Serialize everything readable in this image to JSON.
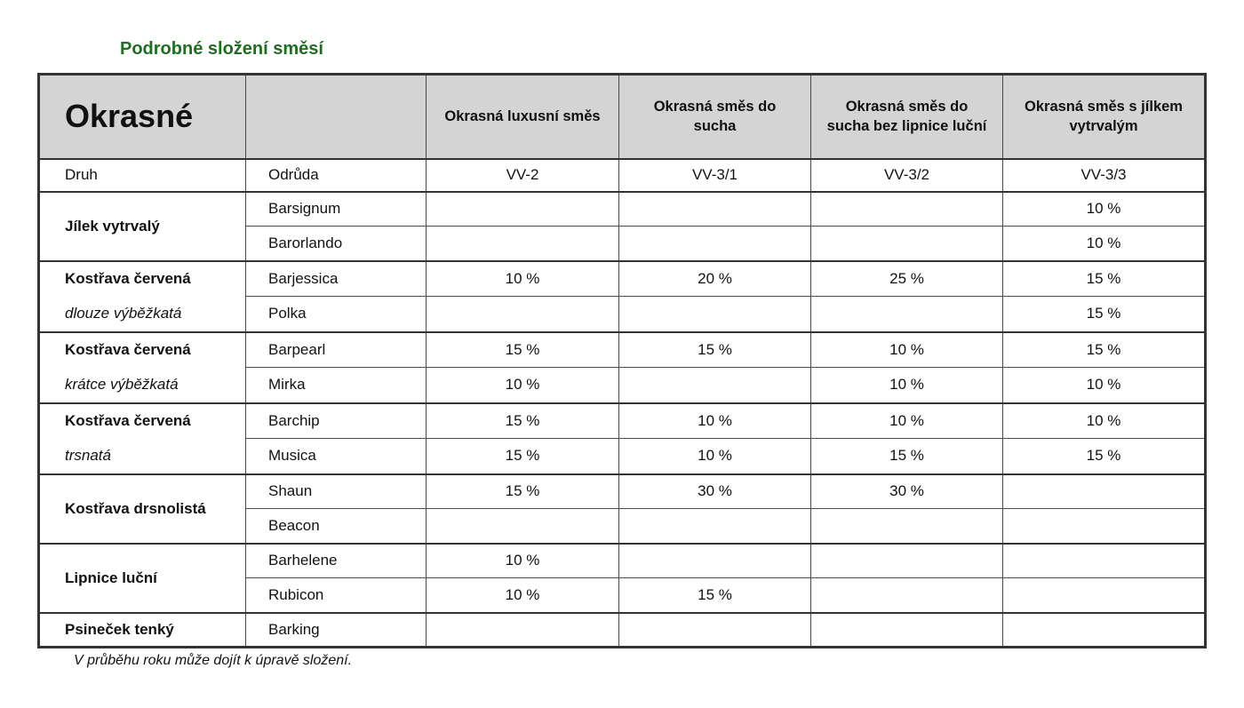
{
  "page": {
    "title": "Podrobné složení směsí",
    "footnote": "V průběhu roku může dojít k úpravě složení.",
    "colors": {
      "accent_green": "#1e6e1e",
      "header_bg": "#d4d4d4",
      "border_strong": "#333333"
    }
  },
  "chart_data": {
    "type": "table",
    "title": "Podrobné složení směsí",
    "columns": [
      "Druh",
      "Odrůda",
      "Okrasná luxusní směs (VV-2)",
      "Okrasná směs do sucha (VV-3/1)",
      "Okrasná směs do sucha bez lipnice luční (VV-3/2)",
      "Okrasná směs s jílkem vytrvalým (VV-3/3)"
    ]
  },
  "table": {
    "corner_title": "Okrasné",
    "mix_headers": [
      "Okrasná luxusní směs",
      "Okrasná směs do sucha",
      "Okrasná směs do sucha bez lipnice luční",
      "Okrasná směs s jílkem vytrvalým"
    ],
    "druh_label": "Druh",
    "odruda_label": "Odrůda",
    "codes": [
      "VV-2",
      "VV-3/1",
      "VV-3/2",
      "VV-3/3"
    ],
    "groups": [
      {
        "species": "Jílek vytrvalý",
        "subtitle": "",
        "rows": [
          {
            "variety": "Barsignum",
            "values": [
              "",
              "",
              "",
              "10 %"
            ]
          },
          {
            "variety": "Barorlando",
            "values": [
              "",
              "",
              "",
              "10 %"
            ]
          }
        ]
      },
      {
        "species": "Kostřava červená",
        "subtitle": "dlouze výběžkatá",
        "rows": [
          {
            "variety": "Barjessica",
            "values": [
              "10 %",
              "20 %",
              "25 %",
              "15 %"
            ]
          },
          {
            "variety": "Polka",
            "values": [
              "",
              "",
              "",
              "15 %"
            ]
          }
        ]
      },
      {
        "species": "Kostřava červená",
        "subtitle": "krátce výběžkatá",
        "rows": [
          {
            "variety": "Barpearl",
            "values": [
              "15 %",
              "15 %",
              "10 %",
              "15 %"
            ]
          },
          {
            "variety": "Mirka",
            "values": [
              "10 %",
              "",
              "10 %",
              "10 %"
            ]
          }
        ]
      },
      {
        "species": "Kostřava červená",
        "subtitle": "trsnatá",
        "rows": [
          {
            "variety": "Barchip",
            "values": [
              "15 %",
              "10 %",
              "10 %",
              "10 %"
            ]
          },
          {
            "variety": "Musica",
            "values": [
              "15 %",
              "10 %",
              "15 %",
              "15 %"
            ]
          }
        ]
      },
      {
        "species": "Kostřava drsnolistá",
        "subtitle": "",
        "rows": [
          {
            "variety": "Shaun",
            "values": [
              "15 %",
              "30 %",
              "30 %",
              ""
            ]
          },
          {
            "variety": "Beacon",
            "values": [
              "",
              "",
              "",
              ""
            ]
          }
        ]
      },
      {
        "species": "Lipnice luční",
        "subtitle": "",
        "rows": [
          {
            "variety": "Barhelene",
            "values": [
              "10 %",
              "",
              "",
              ""
            ]
          },
          {
            "variety": "Rubicon",
            "values": [
              "10 %",
              "15 %",
              "",
              ""
            ]
          }
        ]
      },
      {
        "species": "Psineček tenký",
        "subtitle": "",
        "rows": [
          {
            "variety": "Barking",
            "values": [
              "",
              "",
              "",
              ""
            ]
          }
        ]
      }
    ]
  }
}
